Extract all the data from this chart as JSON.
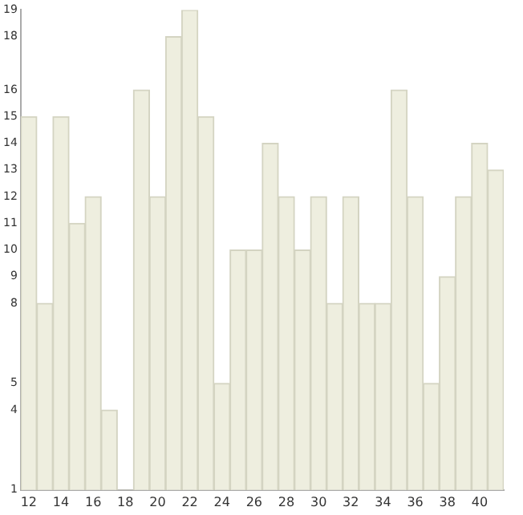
{
  "chart_data": {
    "type": "bar",
    "categories": [
      "12",
      null,
      "14",
      null,
      "16",
      null,
      "18",
      null,
      "20",
      null,
      "22",
      null,
      "24",
      null,
      "26",
      null,
      "28",
      null,
      "30",
      null,
      "32",
      null,
      "34",
      null,
      "36",
      null,
      "38",
      null,
      "40",
      null
    ],
    "values": [
      15,
      8,
      15,
      11,
      12,
      4,
      1,
      16,
      12,
      18,
      19,
      15,
      5,
      10,
      10,
      14,
      12,
      10,
      12,
      8,
      12,
      8,
      8,
      16,
      12,
      5,
      9,
      12,
      14,
      13
    ],
    "color": "#eeeedf",
    "ylim": [
      1,
      19
    ],
    "yticks": [
      1,
      4,
      5,
      8,
      9,
      10,
      11,
      12,
      13,
      14,
      15,
      16,
      18,
      19
    ],
    "grid": false,
    "legend": false
  }
}
